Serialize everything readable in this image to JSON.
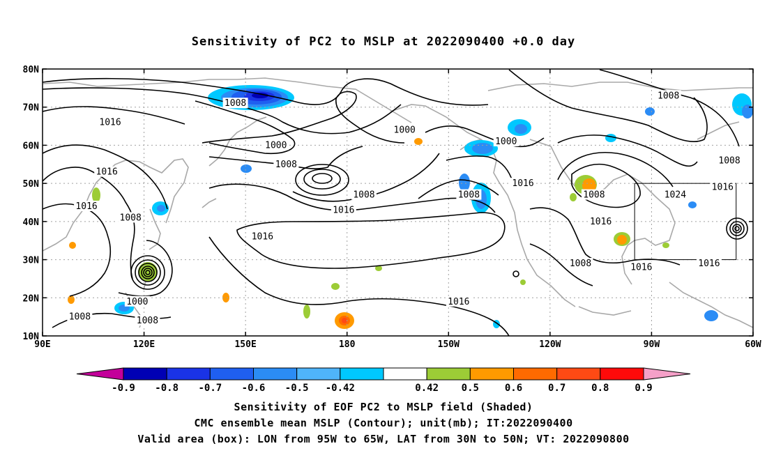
{
  "title": "Sensitivity of PC2 to MSLP at 2022090400 +0.0 day",
  "map": {
    "lon_range": [
      90,
      300
    ],
    "lat_range": [
      10,
      80
    ],
    "lon_ticks": [
      {
        "lon": 90,
        "label": "90E"
      },
      {
        "lon": 120,
        "label": "120E"
      },
      {
        "lon": 150,
        "label": "150E"
      },
      {
        "lon": 180,
        "label": "180"
      },
      {
        "lon": 210,
        "label": "150W"
      },
      {
        "lon": 240,
        "label": "120W"
      },
      {
        "lon": 270,
        "label": "90W"
      },
      {
        "lon": 300,
        "label": "60W"
      }
    ],
    "lat_ticks": [
      {
        "lat": 10,
        "label": "10N"
      },
      {
        "lat": 20,
        "label": "20N"
      },
      {
        "lat": 30,
        "label": "30N"
      },
      {
        "lat": 40,
        "label": "40N"
      },
      {
        "lat": 50,
        "label": "50N"
      },
      {
        "lat": 60,
        "label": "60N"
      },
      {
        "lat": 70,
        "label": "70N"
      },
      {
        "lat": 80,
        "label": "80N"
      }
    ],
    "valid_box": {
      "lon_min": 265,
      "lon_max": 295,
      "lat_min": 30,
      "lat_max": 50
    },
    "contour_labels": [
      {
        "text": "1008",
        "lon": 147,
        "lat": 71
      },
      {
        "text": "1016",
        "lon": 110,
        "lat": 66
      },
      {
        "text": "1000",
        "lon": 159,
        "lat": 60
      },
      {
        "text": "1008",
        "lon": 162,
        "lat": 55
      },
      {
        "text": "1016",
        "lon": 109,
        "lat": 53
      },
      {
        "text": "1016",
        "lon": 103,
        "lat": 44
      },
      {
        "text": "1008",
        "lon": 116,
        "lat": 41
      },
      {
        "text": "1016",
        "lon": 155,
        "lat": 36
      },
      {
        "text": "1000",
        "lon": 118,
        "lat": 19
      },
      {
        "text": "1008",
        "lon": 101,
        "lat": 15
      },
      {
        "text": "1008",
        "lon": 121,
        "lat": 14
      },
      {
        "text": "1000",
        "lon": 197,
        "lat": 64
      },
      {
        "text": "1008",
        "lon": 185,
        "lat": 47
      },
      {
        "text": "1016",
        "lon": 179,
        "lat": 43
      },
      {
        "text": "1008",
        "lon": 216,
        "lat": 47
      },
      {
        "text": "1000",
        "lon": 227,
        "lat": 61
      },
      {
        "text": "1016",
        "lon": 232,
        "lat": 50
      },
      {
        "text": "1016",
        "lon": 213,
        "lat": 19
      },
      {
        "text": "1008",
        "lon": 253,
        "lat": 47
      },
      {
        "text": "1016",
        "lon": 255,
        "lat": 40
      },
      {
        "text": "1008",
        "lon": 249,
        "lat": 29
      },
      {
        "text": "1016",
        "lon": 267,
        "lat": 28
      },
      {
        "text": "1008",
        "lon": 275,
        "lat": 73
      },
      {
        "text": "1008",
        "lon": 293,
        "lat": 56
      },
      {
        "text": "1024",
        "lon": 277,
        "lat": 47
      },
      {
        "text": "1016",
        "lon": 291,
        "lat": 49
      },
      {
        "text": "1016",
        "lon": 287,
        "lat": 29
      }
    ],
    "shading_colors": {
      "neg_09": "#c3009a",
      "neg_08": "#0000b4",
      "neg_07": "#1a33e6",
      "neg_06": "#1f5ff0",
      "neg_05": "#2b8cf5",
      "neg_042": "#00c8ff",
      "neutral": "#ffffff",
      "pos_042": "#9ccc36",
      "pos_05": "#ff9a00",
      "pos_06": "#ff6a00",
      "pos_07": "#ff4a14",
      "pos_08": "#ff0a0a",
      "pos_09": "#f5a0c8"
    }
  },
  "colorbar": {
    "labels": [
      "-0.9",
      "-0.8",
      "-0.7",
      "-0.6",
      "-0.5",
      "-0.42",
      "0.42",
      "0.5",
      "0.6",
      "0.7",
      "0.8",
      "0.9"
    ],
    "colors": [
      "#c3009a",
      "#0000b4",
      "#1a33e6",
      "#1f5ff0",
      "#2b8cf5",
      "#4fb4fa",
      "#00c8ff",
      "#ffffff",
      "#9ccc36",
      "#ff9a00",
      "#ff6a00",
      "#ff4a14",
      "#ff0a0a",
      "#f5a0c8"
    ]
  },
  "captions": {
    "line1": "Sensitivity of EOF PC2 to MSLP field (Shaded)",
    "line2": "CMC ensemble mean MSLP (Contour); unit(mb); IT:2022090400",
    "line3": "Valid area (box): LON from 95W to 65W, LAT from 30N to 50N; VT: 2022090800"
  }
}
